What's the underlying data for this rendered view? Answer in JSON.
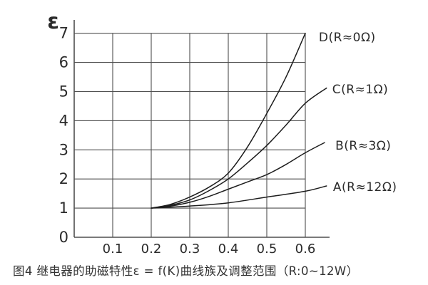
{
  "figure": {
    "caption": "图4 继电器的助磁特性ε = f(K)曲线族及调整范围（R:0~12W）"
  },
  "colors": {
    "background": "#ffffff",
    "grid": "#4f4f4f",
    "axis": "#4f4f4f",
    "curve": "#1d1d1d",
    "text": "#2b2b2b",
    "caption_text": "#333333"
  },
  "chart_data": {
    "type": "line",
    "title": "",
    "xlabel": "",
    "ylabel": "ε",
    "xlim": [
      0,
      0.66
    ],
    "ylim": [
      0,
      7.45
    ],
    "x_ticks": [
      "0.1",
      "0.2",
      "0.3",
      "0.4",
      "0.5",
      "0.6"
    ],
    "y_ticks": [
      "0",
      "1",
      "2",
      "3",
      "4",
      "5",
      "6",
      "7"
    ],
    "grid": true,
    "grid_x_range": [
      0.1,
      0.6
    ],
    "grid_y_range": [
      1,
      7
    ],
    "legend_position": "right-of-curves",
    "series": [
      {
        "name": "A",
        "label": "A(R≈12Ω)",
        "label_at": [
          0.672,
          1.74
        ],
        "points": [
          [
            0.2,
            1.0
          ],
          [
            0.3,
            1.07
          ],
          [
            0.4,
            1.18
          ],
          [
            0.5,
            1.38
          ],
          [
            0.6,
            1.58
          ],
          [
            0.655,
            1.76
          ]
        ]
      },
      {
        "name": "B",
        "label": "B(R≈3Ω)",
        "label_at": [
          0.678,
          3.15
        ],
        "points": [
          [
            0.2,
            1.0
          ],
          [
            0.25,
            1.07
          ],
          [
            0.3,
            1.2
          ],
          [
            0.35,
            1.4
          ],
          [
            0.4,
            1.65
          ],
          [
            0.45,
            1.9
          ],
          [
            0.5,
            2.15
          ],
          [
            0.55,
            2.5
          ],
          [
            0.6,
            2.9
          ],
          [
            0.65,
            3.25
          ]
        ]
      },
      {
        "name": "C",
        "label": "C(R≈1Ω)",
        "label_at": [
          0.67,
          5.09
        ],
        "points": [
          [
            0.2,
            1.0
          ],
          [
            0.25,
            1.1
          ],
          [
            0.3,
            1.28
          ],
          [
            0.35,
            1.6
          ],
          [
            0.4,
            2.0
          ],
          [
            0.45,
            2.55
          ],
          [
            0.5,
            3.15
          ],
          [
            0.55,
            3.85
          ],
          [
            0.6,
            4.6
          ],
          [
            0.655,
            5.12
          ]
        ]
      },
      {
        "name": "D",
        "label": "D(R≈0Ω)",
        "label_at": [
          0.635,
          6.87
        ],
        "points": [
          [
            0.2,
            1.0
          ],
          [
            0.25,
            1.13
          ],
          [
            0.3,
            1.38
          ],
          [
            0.35,
            1.72
          ],
          [
            0.4,
            2.2
          ],
          [
            0.45,
            3.1
          ],
          [
            0.5,
            4.25
          ],
          [
            0.55,
            5.5
          ],
          [
            0.6,
            7.0
          ]
        ]
      }
    ]
  }
}
